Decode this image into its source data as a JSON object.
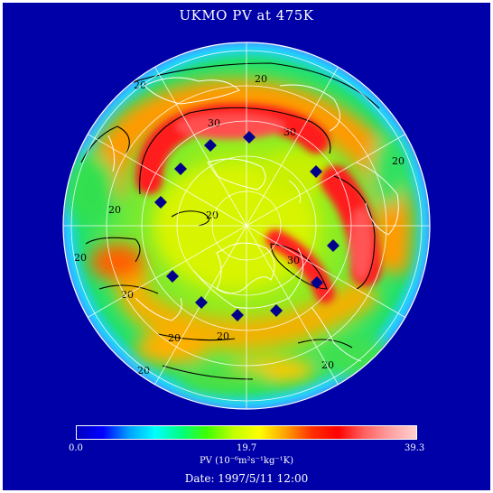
{
  "title": "UKMO PV at 475K",
  "colorbar": {
    "min_label": "0.0",
    "mid_label": "19.7",
    "max_label": "39.3",
    "label": "PV (10⁻⁶m²s⁻¹kg⁻¹K)",
    "colors": [
      "#0000c0",
      "#0000ff",
      "#00a0ff",
      "#00ffff",
      "#00ff80",
      "#40ff00",
      "#c0ff00",
      "#ffff00",
      "#ffa000",
      "#ff3000",
      "#ff0000",
      "#ff6060",
      "#ffa0a0",
      "#ffd0d0"
    ]
  },
  "date": "Date: 1997/5/11 12:00",
  "contour_labels": [
    "20",
    "20",
    "20",
    "20",
    "20",
    "20",
    "20",
    "20",
    "20",
    "20",
    "20",
    "30",
    "30",
    "30"
  ],
  "colors": {
    "background": "#0000a8",
    "marker": "#00008b",
    "high_pv": "#ff2020",
    "contour": "#000000",
    "grid": "#ffffff"
  }
}
